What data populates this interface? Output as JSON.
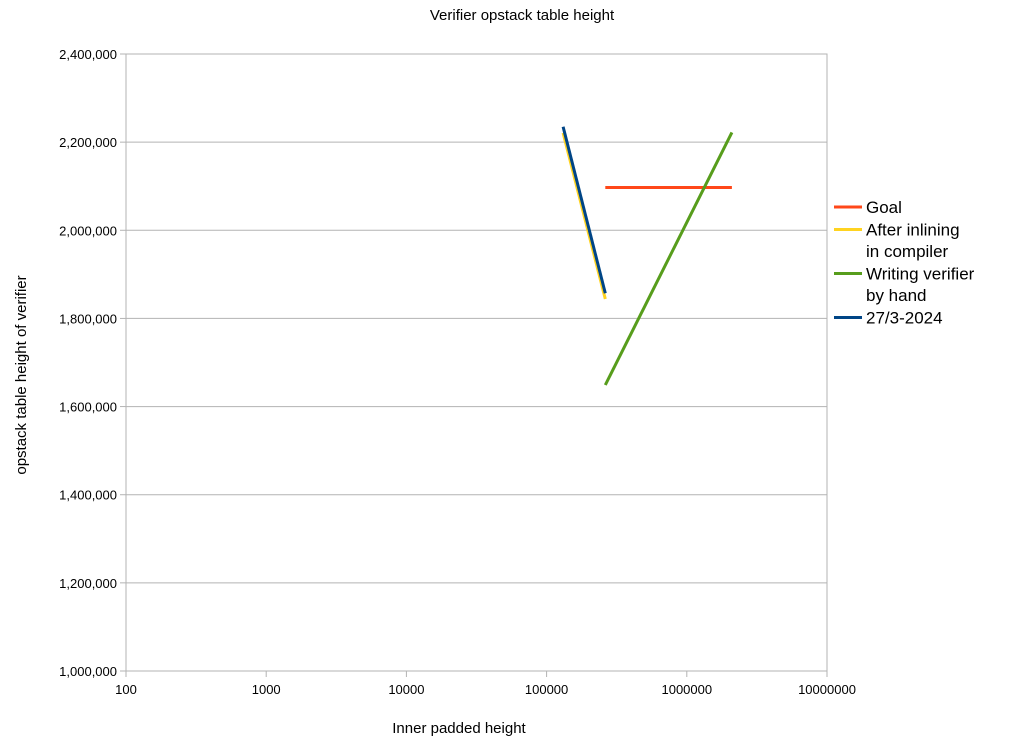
{
  "chart_data": {
    "type": "line",
    "title": "Verifier opstack table height",
    "xlabel": "Inner padded height",
    "ylabel": "opstack table height of verifier",
    "x_scale": "log",
    "xlim": [
      100,
      10000000
    ],
    "ylim": [
      1000000,
      2400000
    ],
    "x_ticks": [
      "100",
      "1000",
      "10000",
      "100000",
      "1000000",
      "10000000"
    ],
    "y_ticks": [
      "1,000,000",
      "1,200,000",
      "1,400,000",
      "1,600,000",
      "1,800,000",
      "2,000,000",
      "2,200,000",
      "2,400,000"
    ],
    "grid": "horizontal",
    "legend_position": "right",
    "series": [
      {
        "name": "Goal",
        "color": "#ff4719",
        "x": [
          262144,
          2097152
        ],
        "y": [
          2097152,
          2097152
        ]
      },
      {
        "name": "After inlining in compiler",
        "color": "#ffd320",
        "x": [
          262144,
          131072
        ],
        "y": [
          1844000,
          2221000
        ]
      },
      {
        "name": "Writing verifier by hand",
        "color": "#579d1c",
        "x": [
          262144,
          2097152
        ],
        "y": [
          1649000,
          2222000
        ]
      },
      {
        "name": "27/3-2024",
        "color": "#004586",
        "x": [
          262144,
          131072
        ],
        "y": [
          1857000,
          2235000
        ]
      }
    ]
  }
}
